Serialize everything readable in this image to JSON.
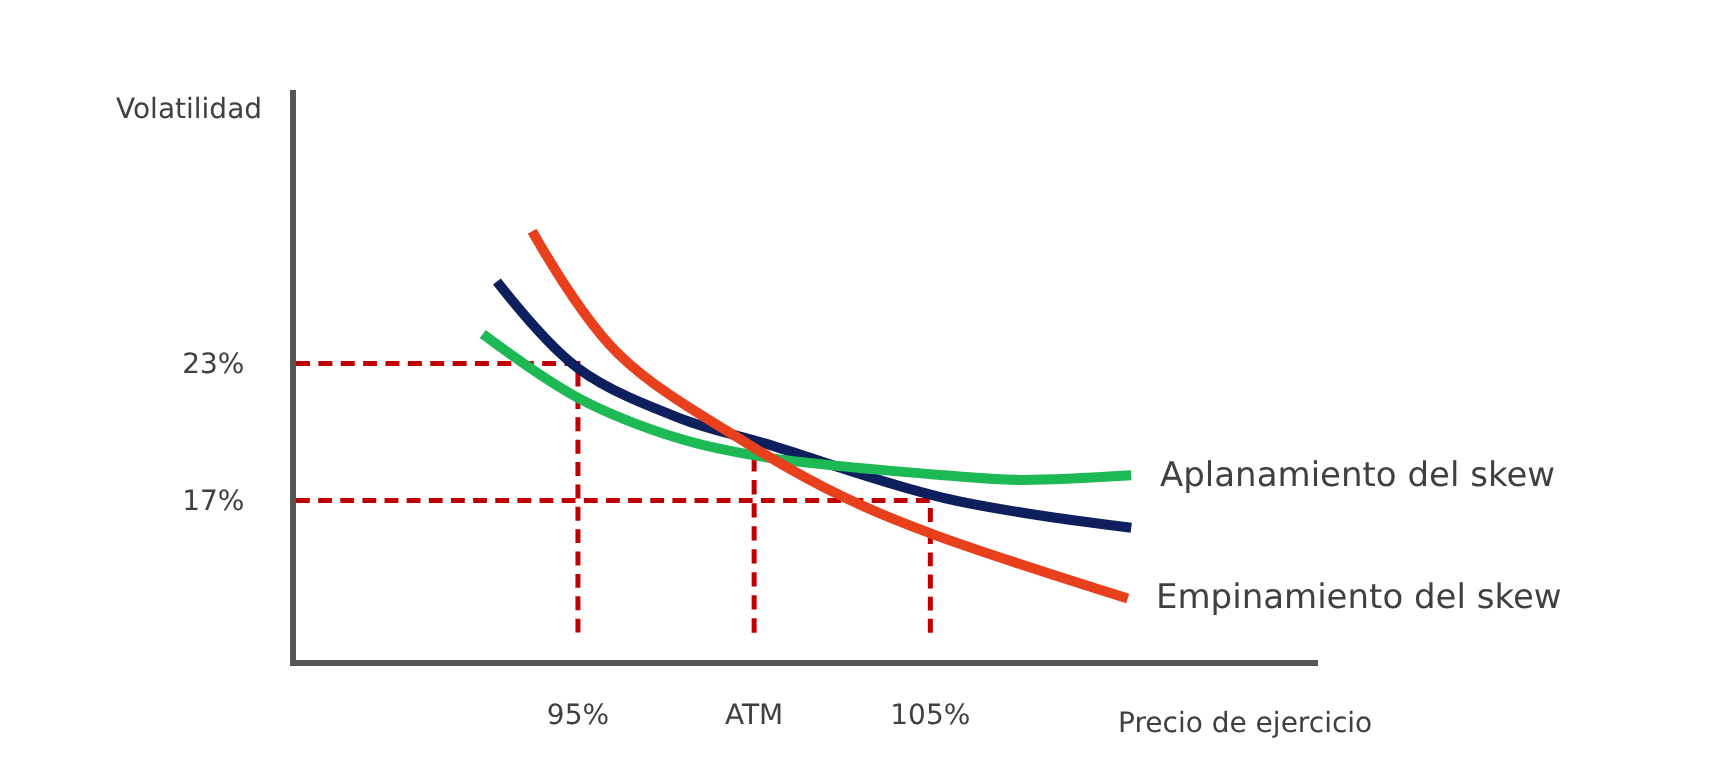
{
  "chart_data": {
    "type": "line",
    "xlabel": "Precio de ejercicio",
    "ylabel": "Volatilidad",
    "xlim": [
      87,
      116
    ],
    "ylim": [
      10,
      35
    ],
    "xticks": [
      {
        "value": 95,
        "label": "95%"
      },
      {
        "value": 100,
        "label": "ATM"
      },
      {
        "value": 105,
        "label": "105%"
      }
    ],
    "yticks": [
      {
        "value": 17,
        "label": "17%"
      },
      {
        "value": 23,
        "label": "23%"
      }
    ],
    "legend": false,
    "marker": "none",
    "line_style": "solid",
    "series": [
      {
        "color": "#c00000",
        "line_style": "dashed",
        "x": [
          87,
          95,
          95
        ],
        "values": [
          23,
          23,
          11.2
        ]
      },
      {
        "color": "#c00000",
        "line_style": "dashed",
        "x": [
          87,
          105,
          105
        ],
        "values": [
          17,
          17,
          11.2
        ]
      },
      {
        "color": "#c00000",
        "line_style": "dashed",
        "x": [
          100,
          100
        ],
        "values": [
          18.9,
          11.2
        ]
      },
      {
        "color": "#0d1f5c",
        "x": [
          92.7,
          95,
          97.9,
          100.3,
          105.4,
          110.7
        ],
        "values": [
          26.6,
          22.8,
          20.6,
          19.5,
          17.1,
          15.8
        ]
      },
      {
        "name": "Aplanamiento del skew",
        "color": "#1db954",
        "x": [
          92.3,
          95,
          97.9,
          100.3,
          105.4,
          107.5,
          110.7
        ],
        "values": [
          24.3,
          21.5,
          19.7,
          18.9,
          18.1,
          17.9,
          18.1
        ]
      },
      {
        "name": "Empinamiento del skew",
        "color": "#e8401c",
        "x": [
          93.7,
          96.1,
          99.8,
          102.6,
          105.1,
          110.6
        ],
        "values": [
          28.8,
          23.5,
          19.5,
          17.1,
          15.5,
          12.7
        ]
      }
    ]
  }
}
